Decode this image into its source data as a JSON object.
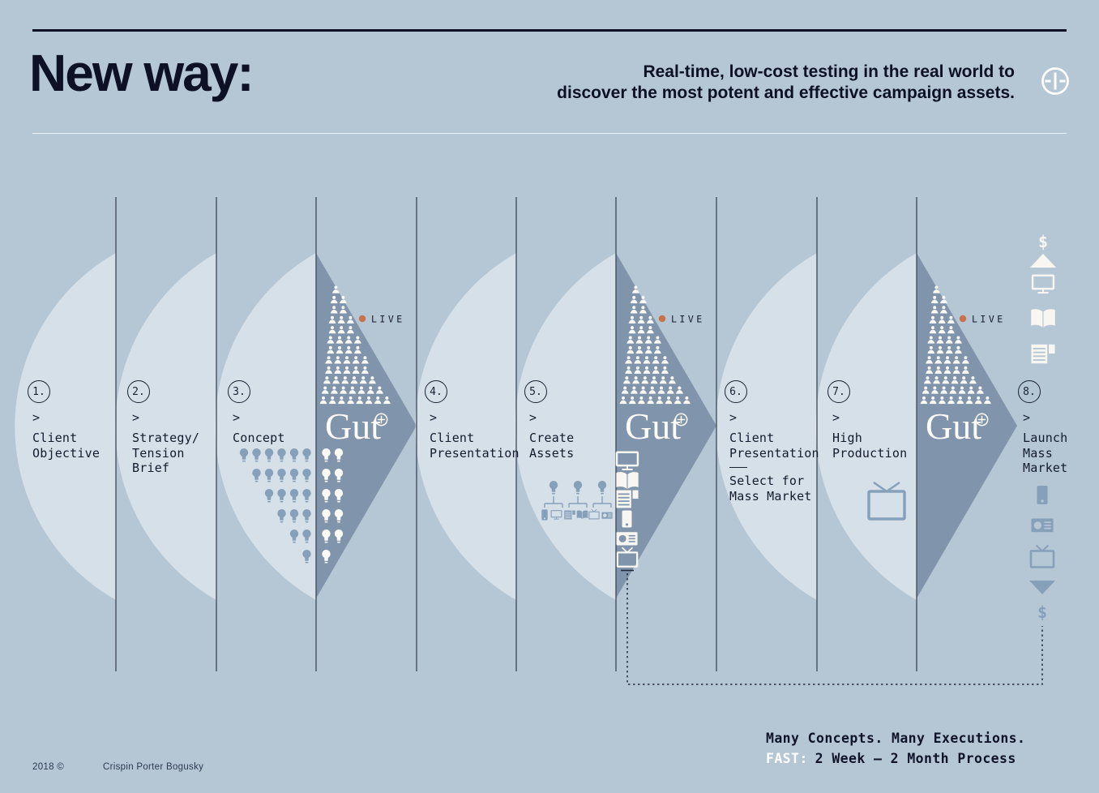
{
  "header": {
    "title": "New way:",
    "subtitle_line1": "Real-time, low-cost testing in the real world to",
    "subtitle_line2": "discover the most potent and effective campaign assets.",
    "plus_icon": "circle-plus-icon"
  },
  "steps": [
    {
      "num": "1.",
      "chevron": ">",
      "lines": [
        "Client",
        "Objective"
      ]
    },
    {
      "num": "2.",
      "chevron": ">",
      "lines": [
        "Strategy/",
        "Tension",
        "Brief"
      ]
    },
    {
      "num": "3.",
      "chevron": ">",
      "lines": [
        "Concept"
      ]
    },
    {
      "num": "4.",
      "chevron": ">",
      "lines": [
        "Client",
        "Presentation"
      ]
    },
    {
      "num": "5.",
      "chevron": ">",
      "lines": [
        "Create",
        "Assets"
      ]
    },
    {
      "num": "6.",
      "chevron": ">",
      "lines": [
        "Client",
        "Presentation"
      ],
      "sub_lines": [
        "Select for",
        "Mass Market"
      ]
    },
    {
      "num": "7.",
      "chevron": ">",
      "lines": [
        "High",
        "Production"
      ]
    },
    {
      "num": "8.",
      "chevron": ">",
      "lines": [
        "Launch",
        "Mass",
        "Market"
      ]
    }
  ],
  "gut": {
    "brand": "Gut",
    "live_label": "LIVE"
  },
  "callout": {
    "line1": "Many Concepts. Many Executions.",
    "fast_label": "FAST:",
    "line2": "2 Week – 2 Month Process"
  },
  "footer": {
    "year": "2018 ©",
    "credit": "Crispin Porter Bogusky"
  },
  "decor": {
    "dollar": "$",
    "triangles_x": [
      390,
      760,
      1131
    ],
    "pyramid_rows": [
      1,
      2,
      2,
      3,
      3,
      4,
      4,
      5,
      5,
      6,
      7,
      8
    ],
    "concept_bulbs_left": [
      6,
      5,
      4,
      3,
      2,
      1
    ],
    "concept_bulbs_right": [
      2,
      2,
      2,
      2,
      2,
      1
    ],
    "gut_channel_icons": [
      "monitor",
      "book",
      "newspaper",
      "smartphone",
      "radio",
      "tv"
    ],
    "launch_icons_top": [
      "dollar",
      "triangle-up",
      "monitor",
      "book",
      "newspaper"
    ],
    "launch_icons_bottom": [
      "smartphone",
      "radio",
      "tv",
      "triangle-down",
      "dollar"
    ],
    "create_assets_pairs": [
      [
        "smartphone",
        "monitor"
      ],
      [
        "newspaper",
        "book"
      ],
      [
        "tv",
        "radio"
      ]
    ],
    "colors": {
      "background": "#b5c7d5",
      "petal": "rgba(255,255,255,0.45)",
      "triangle": "#8094ac",
      "navy": "#10142b",
      "live_dot": "#c9714a",
      "icon_white": "#f8f6f0",
      "icon_slate": "#87a0ba"
    }
  }
}
